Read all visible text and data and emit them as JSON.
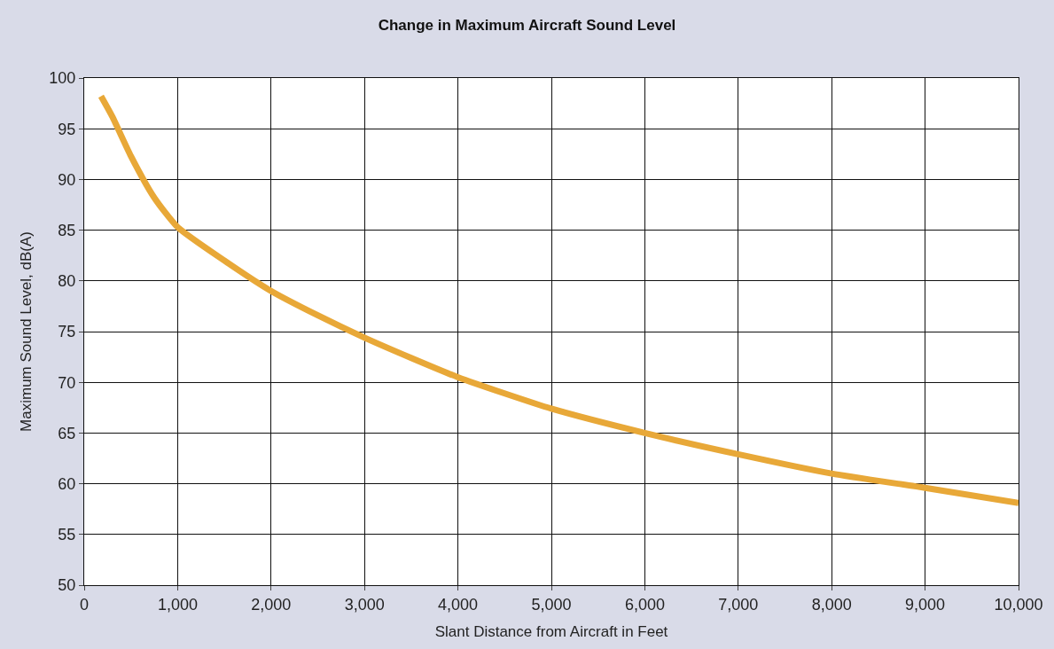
{
  "chart_data": {
    "type": "line",
    "title": "Change in Maximum Aircraft Sound Level",
    "xlabel": "Slant Distance from Aircraft in Feet",
    "ylabel": "Maximum Sound Level, dB(A)",
    "x": [
      180,
      300,
      500,
      750,
      1000,
      1500,
      2000,
      2500,
      3000,
      3500,
      4000,
      4500,
      5000,
      6000,
      7000,
      8000,
      9000,
      10000
    ],
    "series": [
      {
        "color": "#e8a838",
        "values": [
          98.2,
          96.2,
          92.3,
          88.2,
          85.3,
          82,
          79,
          76.6,
          74.4,
          72.4,
          70.5,
          68.9,
          67.4,
          65,
          62.9,
          61,
          59.6,
          58.1
        ]
      }
    ],
    "xlim": [
      0,
      10000
    ],
    "ylim": [
      50,
      100
    ],
    "xticks": [
      {
        "value": 0,
        "label": "0"
      },
      {
        "value": 1000,
        "label": "1,000"
      },
      {
        "value": 2000,
        "label": "2,000"
      },
      {
        "value": 3000,
        "label": "3,000"
      },
      {
        "value": 4000,
        "label": "4,000"
      },
      {
        "value": 5000,
        "label": "5,000"
      },
      {
        "value": 6000,
        "label": "6,000"
      },
      {
        "value": 7000,
        "label": "7,000"
      },
      {
        "value": 8000,
        "label": "8,000"
      },
      {
        "value": 9000,
        "label": "9,000"
      },
      {
        "value": 10000,
        "label": "10,000"
      }
    ],
    "yticks": [
      50,
      55,
      60,
      65,
      70,
      75,
      80,
      85,
      90,
      95,
      100
    ],
    "grid": true,
    "marker": "none",
    "line_style": "solid"
  }
}
